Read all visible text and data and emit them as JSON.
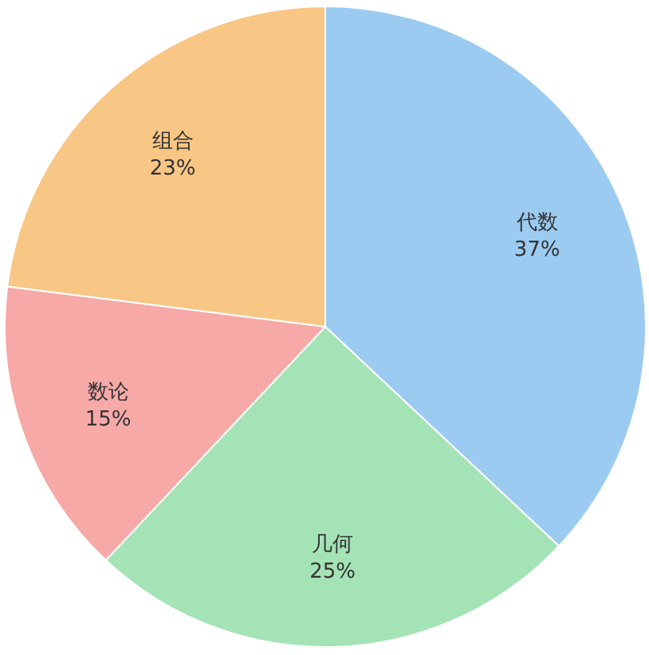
{
  "chart_data": {
    "type": "pie",
    "categories": [
      "代数",
      "几何",
      "数论",
      "组合"
    ],
    "values": [
      37,
      25,
      15,
      23
    ],
    "value_labels": [
      "37%",
      "25%",
      "15%",
      "23%"
    ],
    "colors": [
      "#9ccbf1",
      "#a4e3b5",
      "#f6a9a7",
      "#f8c785"
    ],
    "legend": false
  }
}
